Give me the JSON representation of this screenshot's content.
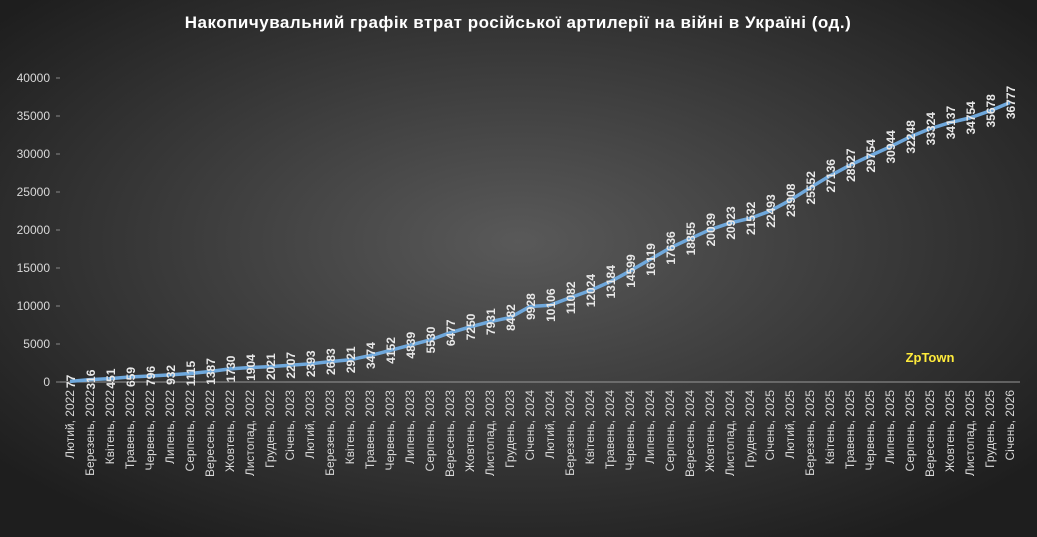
{
  "chart_data": {
    "type": "line",
    "title": "Накопичувальний  графік  втрат  російської  артилерії  на  війні  в  Україні  (од.)",
    "annotation": "ZpTown",
    "categories": [
      "Лютий, 2022",
      "Березень, 2022",
      "Квітень, 2022",
      "Травень, 2022",
      "Червень, 2022",
      "Липень, 2022",
      "Серпень, 2022",
      "Вересень, 2022",
      "Жовтень, 2022",
      "Листопад, 2022",
      "Грудень, 2022",
      "Січень, 2023",
      "Лютий, 2023",
      "Березень, 2023",
      "Квітень, 2023",
      "Травень, 2023",
      "Червень, 2023",
      "Липень, 2023",
      "Серпень, 2023",
      "Вересень, 2023",
      "Жовтень, 2023",
      "Листопад, 2023",
      "Грудень, 2023",
      "Січень, 2024",
      "Лютий, 2024",
      "Березень, 2024",
      "Квітень, 2024",
      "Травень, 2024",
      "Червень, 2024",
      "Липень, 2024",
      "Серпень, 2024",
      "Вересень, 2024",
      "Жовтень, 2024",
      "Листопад, 2024",
      "Грудень, 2024",
      "Січень, 2025",
      "Лютий, 2025",
      "Березень, 2025",
      "Квітень, 2025",
      "Травень, 2025",
      "Червень, 2025",
      "Липень, 2025",
      "Серпень, 2025",
      "Вересень, 2025",
      "Жовтень, 2025",
      "Листопад, 2025",
      "Грудень, 2025",
      "Січень, 2026"
    ],
    "values": [
      77,
      316,
      451,
      659,
      796,
      932,
      1115,
      1387,
      1730,
      1904,
      2021,
      2207,
      2393,
      2683,
      2921,
      3474,
      4152,
      4839,
      5530,
      6477,
      7250,
      7931,
      8482,
      9928,
      10106,
      11082,
      12024,
      13184,
      14599,
      16119,
      17636,
      18855,
      20039,
      20923,
      21532,
      22493,
      23908,
      25552,
      27136,
      28527,
      29754,
      30944,
      32248,
      33324,
      34137,
      34754,
      35678,
      36777
    ],
    "color": "#6fa8dc",
    "ylim": [
      0,
      40000
    ],
    "yticks": [
      0,
      5000,
      10000,
      15000,
      20000,
      25000,
      30000,
      35000,
      40000
    ]
  }
}
